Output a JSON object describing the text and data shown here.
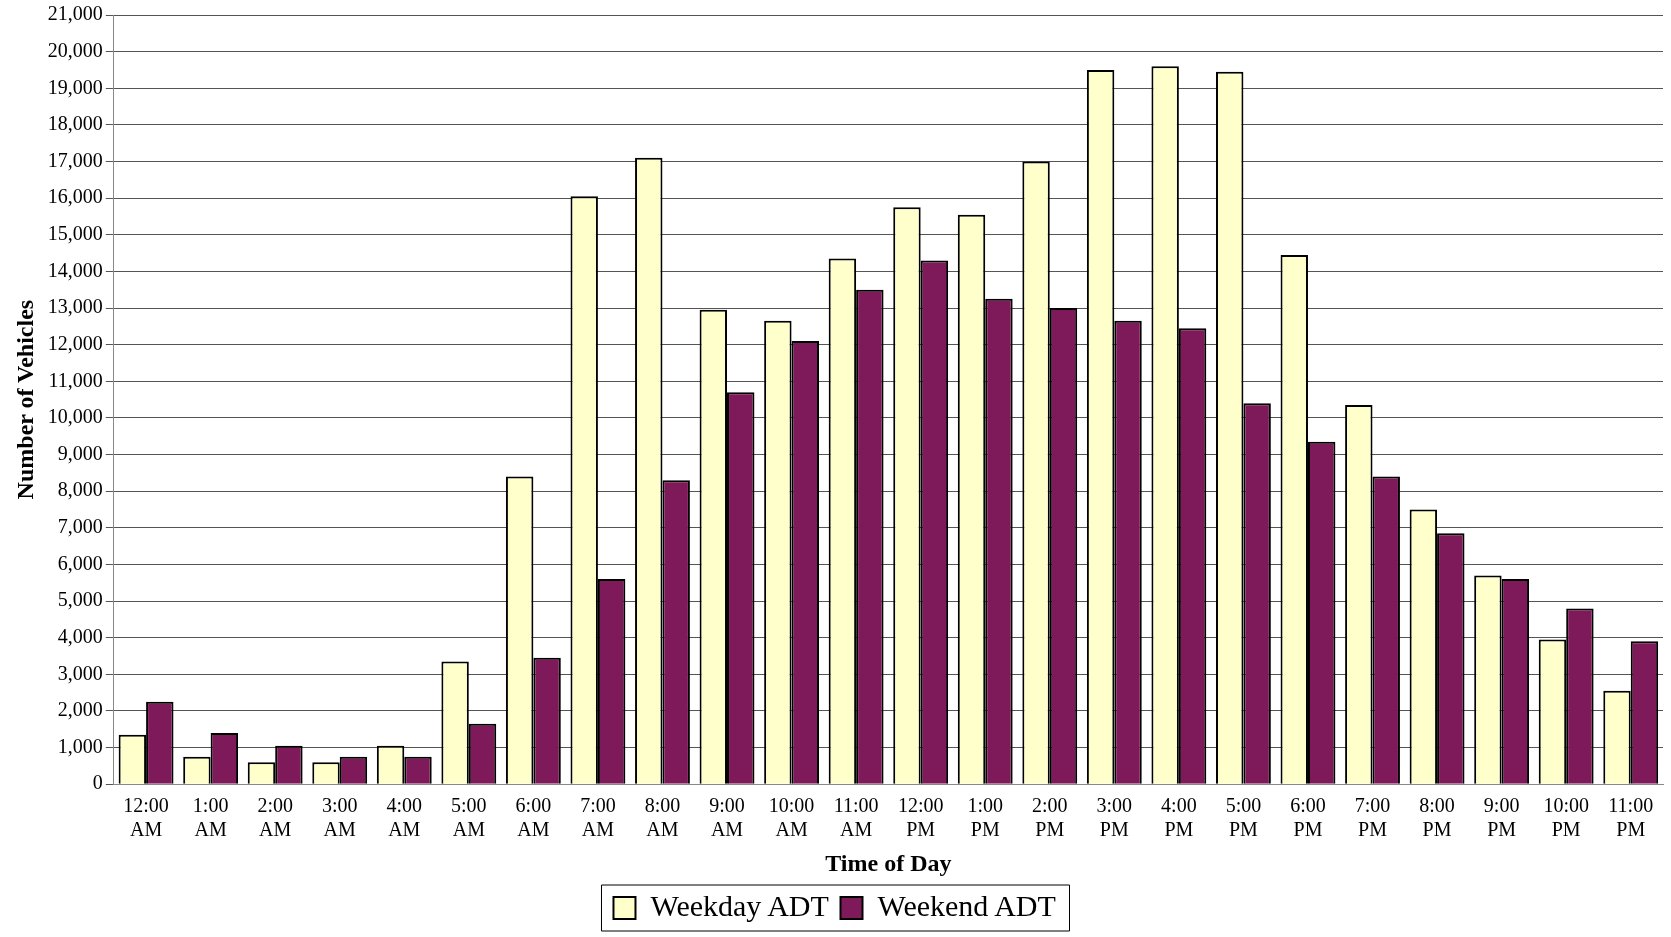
{
  "chart_data": {
    "type": "bar",
    "xlabel": "Time of Day",
    "ylabel": "Number of Vehicles",
    "categories": [
      "12:00 AM",
      "1:00 AM",
      "2:00 AM",
      "3:00 AM",
      "4:00 AM",
      "5:00 AM",
      "6:00 AM",
      "7:00 AM",
      "8:00 AM",
      "9:00 AM",
      "10:00 AM",
      "11:00 AM",
      "12:00 PM",
      "1:00 PM",
      "2:00 PM",
      "3:00 PM",
      "4:00 PM",
      "5:00 PM",
      "6:00 PM",
      "7:00 PM",
      "8:00 PM",
      "9:00 PM",
      "10:00 PM",
      "11:00 PM"
    ],
    "series": [
      {
        "name": "Weekday ADT",
        "color": "#ffffcc",
        "values": [
          1350,
          750,
          600,
          600,
          1050,
          3350,
          8400,
          16050,
          17100,
          12950,
          12650,
          14350,
          15750,
          15550,
          17000,
          19500,
          19600,
          19450,
          14450,
          10350,
          7500,
          5700,
          3950,
          2550
        ]
      },
      {
        "name": "Weekend ADT",
        "color": "#7f1a5a",
        "values": [
          2250,
          1400,
          1050,
          750,
          750,
          1650,
          3450,
          5600,
          8300,
          10700,
          12100,
          13500,
          14300,
          13250,
          13000,
          12650,
          12450,
          10400,
          9350,
          8400,
          6850,
          5600,
          4800,
          3900
        ]
      }
    ],
    "ylim": [
      0,
      21000
    ],
    "yticks": [
      {
        "value": 0,
        "label": "0"
      },
      {
        "value": 1000,
        "label": "1,000"
      },
      {
        "value": 2000,
        "label": "2,000"
      },
      {
        "value": 3000,
        "label": "3,000"
      },
      {
        "value": 4000,
        "label": "4,000"
      },
      {
        "value": 5000,
        "label": "5,000"
      },
      {
        "value": 6000,
        "label": "6,000"
      },
      {
        "value": 7000,
        "label": "7,000"
      },
      {
        "value": 8000,
        "label": "8,000"
      },
      {
        "value": 9000,
        "label": "9,000"
      },
      {
        "value": 10000,
        "label": "10,000"
      },
      {
        "value": 11000,
        "label": "11,000"
      },
      {
        "value": 12000,
        "label": "12,000"
      },
      {
        "value": 13000,
        "label": "13,000"
      },
      {
        "value": 14000,
        "label": "14,000"
      },
      {
        "value": 15000,
        "label": "15,000"
      },
      {
        "value": 16000,
        "label": "16,000"
      },
      {
        "value": 17000,
        "label": "17,000"
      },
      {
        "value": 18000,
        "label": "18,000"
      },
      {
        "value": 19000,
        "label": "19,000"
      },
      {
        "value": 20000,
        "label": "20,000"
      },
      {
        "value": 21000,
        "label": "21,000"
      }
    ],
    "grid": "y",
    "legend": "bottom"
  }
}
